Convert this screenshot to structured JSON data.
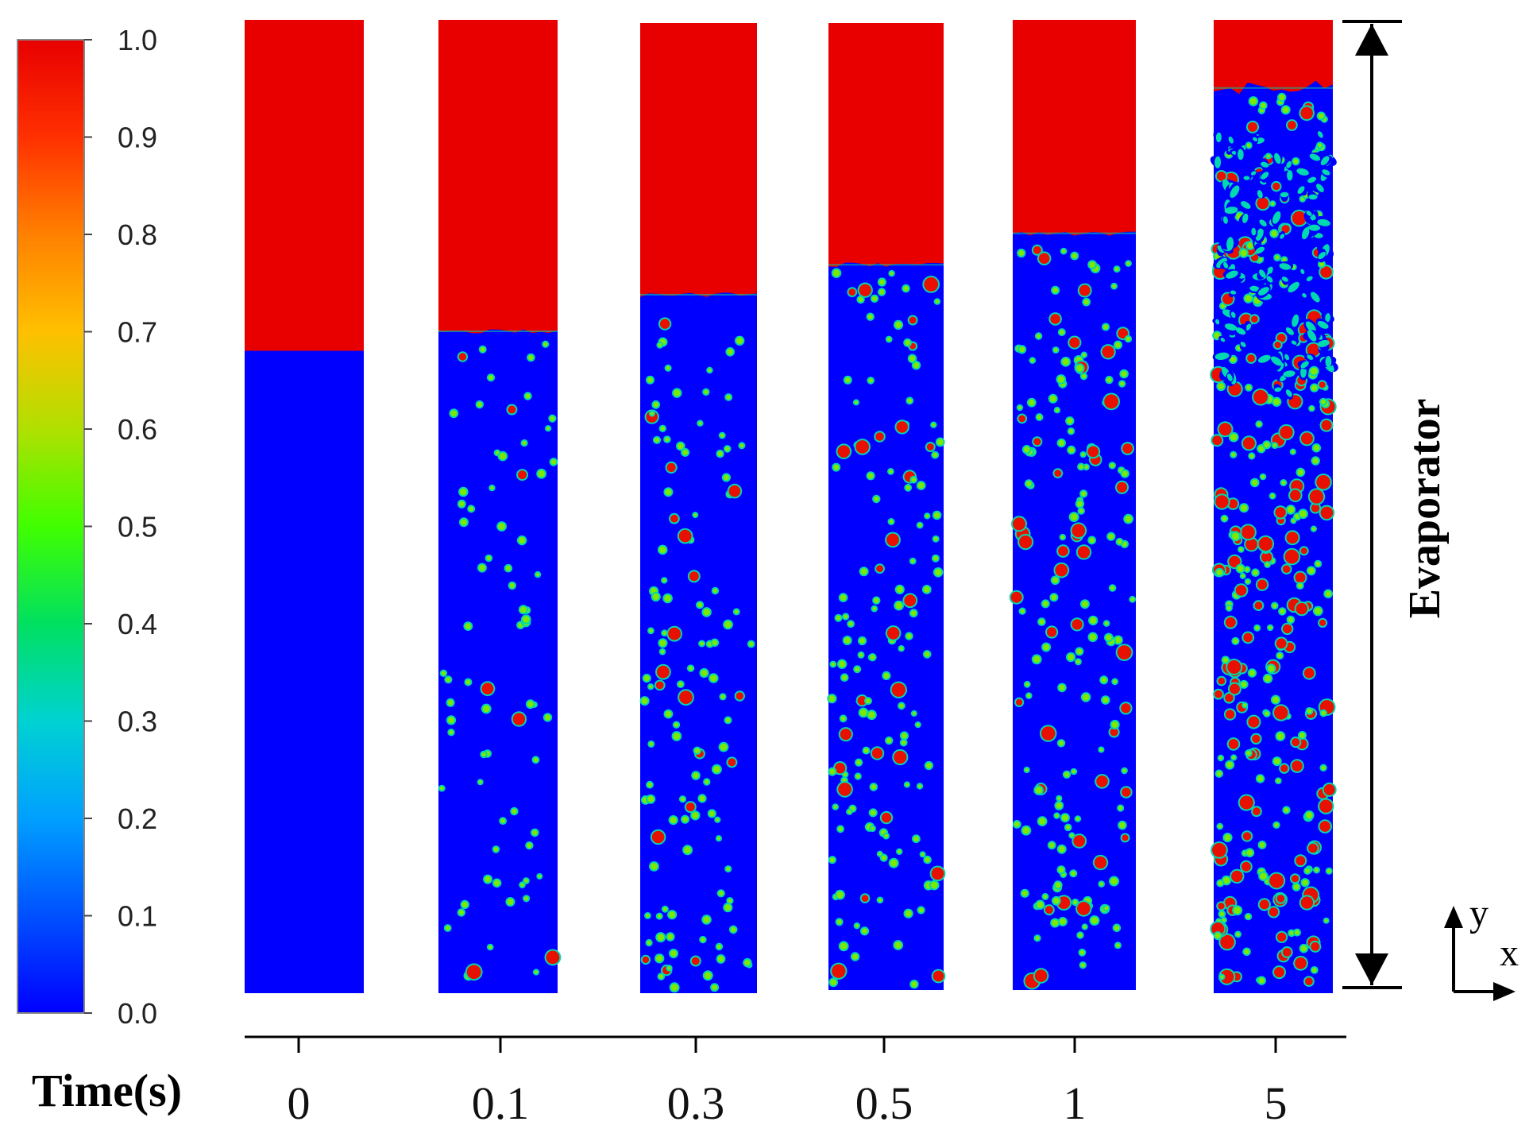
{
  "colorbar": {
    "ticks": [
      "1.0",
      "0.9",
      "0.8",
      "0.7",
      "0.6",
      "0.5",
      "0.4",
      "0.3",
      "0.2",
      "0.1",
      "0.0"
    ],
    "range": [
      0,
      1
    ],
    "colormap": [
      "#0000ff",
      "#0050ff",
      "#00a0ff",
      "#00d2d2",
      "#00e060",
      "#40ff00",
      "#b0e000",
      "#ffc000",
      "#ff8000",
      "#ff3000",
      "#e80000"
    ]
  },
  "colors": {
    "liquid": "#0000ff",
    "vapor": "#e80000"
  },
  "time_axis": {
    "label": "Time(s)",
    "ticks": [
      "0",
      "0.1",
      "0.3",
      "0.5",
      "1",
      "5"
    ]
  },
  "snapshots": [
    {
      "time": "0",
      "interface_level": 0.66,
      "bubble_density": 0,
      "seed": 1
    },
    {
      "time": "0.1",
      "interface_level": 0.68,
      "bubble_density": 0.6,
      "seed": 7
    },
    {
      "time": "0.3",
      "interface_level": 0.72,
      "bubble_density": 1.0,
      "seed": 13
    },
    {
      "time": "0.5",
      "interface_level": 0.75,
      "bubble_density": 1.2,
      "seed": 21
    },
    {
      "time": "1",
      "interface_level": 0.78,
      "bubble_density": 1.5,
      "seed": 33
    },
    {
      "time": "5",
      "interface_level": 0.93,
      "bubble_density": 2.8,
      "seed": 47
    }
  ],
  "evaporator_label": "Evaporator",
  "coords": {
    "y_label": "y",
    "x_label": "x"
  }
}
